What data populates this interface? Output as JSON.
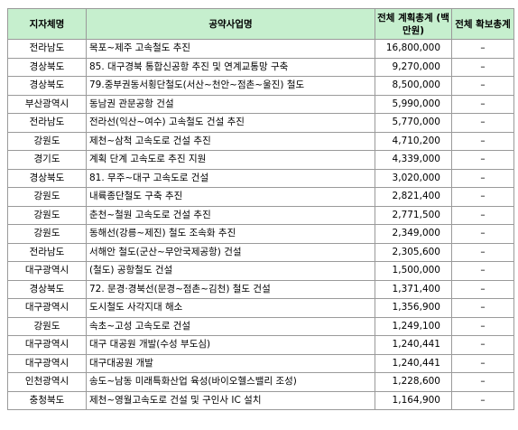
{
  "header": {
    "region": "지자체명",
    "project": "공약사업명",
    "total_plan": "전체 계획총계 (백만원)",
    "total_secured": "전체 확보총계"
  },
  "rows": [
    {
      "region": "전라남도",
      "project": "목포~제주 고속철도 추진",
      "amount": "16,800,000",
      "secured": "–"
    },
    {
      "region": "경상북도",
      "project": "85. 대구경북 통합신공항 추진 및 연계교통망 구축",
      "amount": "9,270,000",
      "secured": "–"
    },
    {
      "region": "경상북도",
      "project": "79.중부권동서횡단철도(서산~천안~점촌~울진) 철도",
      "amount": "8,500,000",
      "secured": "–"
    },
    {
      "region": "부산광역시",
      "project": "동남권 관문공항 건설",
      "amount": "5,990,000",
      "secured": "–"
    },
    {
      "region": "전라남도",
      "project": "전라선(익산~여수) 고속철도 건설 추진",
      "amount": "5,770,000",
      "secured": "–"
    },
    {
      "region": "강원도",
      "project": "제천~삼척 고속도로 건설 추진",
      "amount": "4,710,200",
      "secured": "–"
    },
    {
      "region": "경기도",
      "project": "계획 단계 고속도로 추진 지원",
      "amount": "4,339,000",
      "secured": "–"
    },
    {
      "region": "경상북도",
      "project": "81. 무주~대구 고속도로 건설",
      "amount": "3,020,000",
      "secured": "–"
    },
    {
      "region": "강원도",
      "project": "내륙종단철도 구축 추진",
      "amount": "2,821,400",
      "secured": "–"
    },
    {
      "region": "강원도",
      "project": "춘천~철원 고속도로 건설 추진",
      "amount": "2,771,500",
      "secured": "–"
    },
    {
      "region": "강원도",
      "project": "동해선(강릉~제진) 철도 조속화 추진",
      "amount": "2,349,000",
      "secured": "–"
    },
    {
      "region": "전라남도",
      "project": "서해안 철도(군산~무안국제공항) 건설",
      "amount": "2,305,600",
      "secured": "–"
    },
    {
      "region": "대구광역시",
      "project": "(철도) 공항철도 건설",
      "amount": "1,500,000",
      "secured": "–"
    },
    {
      "region": "경상북도",
      "project": "72. 문경·경북선(문경~점촌~김천) 철도 건설",
      "amount": "1,371,400",
      "secured": "–"
    },
    {
      "region": "대구광역시",
      "project": "도시철도 사각지대 해소",
      "amount": "1,356,900",
      "secured": "–"
    },
    {
      "region": "강원도",
      "project": "속초~고성 고속도로 건설",
      "amount": "1,249,100",
      "secured": "–"
    },
    {
      "region": "대구광역시",
      "project": "대구 대공원 개발(수성 부도심)",
      "amount": "1,240,441",
      "secured": "–"
    },
    {
      "region": "대구광역시",
      "project": "대구대공원 개발",
      "amount": "1,240,441",
      "secured": "–"
    },
    {
      "region": "인천광역시",
      "project": "송도~남동 미래특화산업 육성(바이오헬스밸리 조성)",
      "amount": "1,228,600",
      "secured": "–"
    },
    {
      "region": "충청북도",
      "project": "제천~영월고속도로 건설 및 구인사 IC 설치",
      "amount": "1,164,900",
      "secured": "–"
    }
  ]
}
